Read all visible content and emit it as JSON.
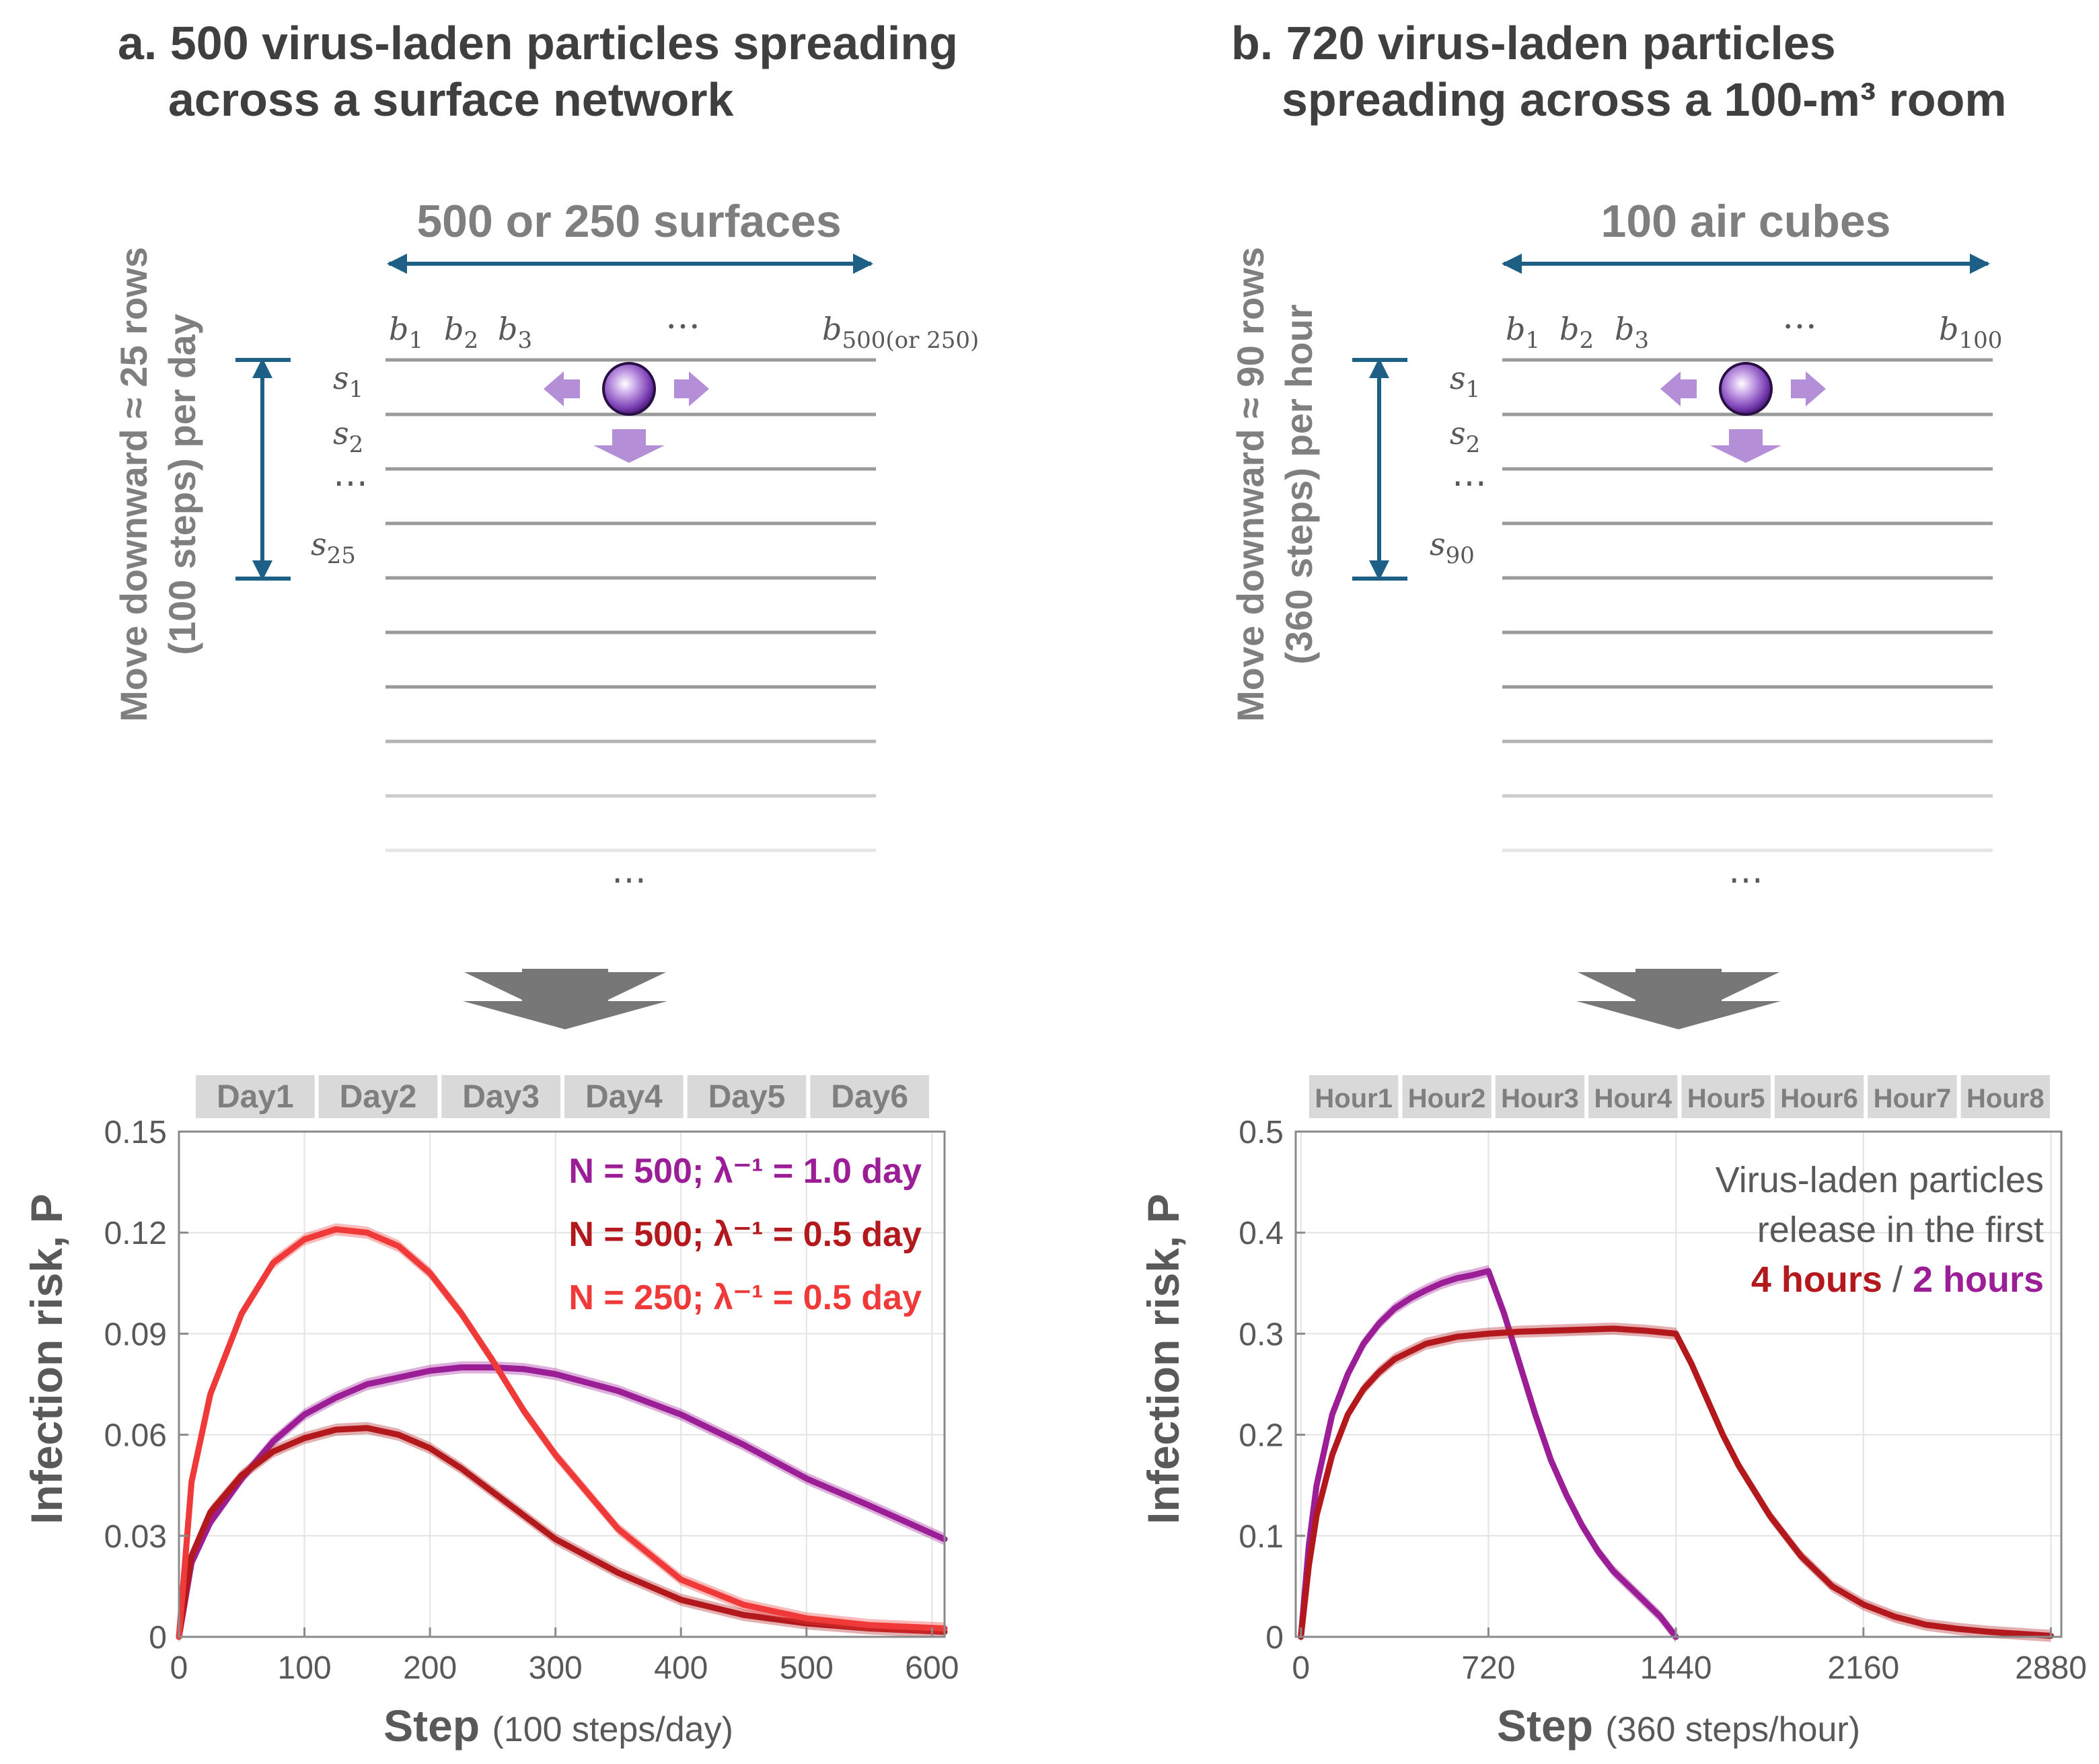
{
  "panels": [
    {
      "title_line1": "a. 500 virus-laden particles spreading",
      "title_line2": "across a surface network",
      "grid_title": "500 or 250 surfaces",
      "vertical_label_line1": "Move downward ≈ 25 rows",
      "vertical_label_line2": "(100 steps) per day",
      "column_labels": [
        "1",
        "2",
        "3",
        "…",
        "500(or 250)"
      ],
      "row_labels": [
        "1",
        "2",
        "⋯",
        "25"
      ],
      "column_symbol": "b",
      "row_symbol": "s",
      "bottom_ellipsis": "⋯"
    },
    {
      "title_line1": "b. 720 virus-laden particles",
      "title_line2": "spreading across a 100-m³ room",
      "grid_title": "100 air cubes",
      "vertical_label_line1": "Move downward ≈ 90 rows",
      "vertical_label_line2": "(360 steps) per hour",
      "column_labels": [
        "1",
        "2",
        "3",
        "…",
        "100"
      ],
      "row_labels": [
        "1",
        "2",
        "⋯",
        "90"
      ],
      "column_symbol": "b",
      "row_symbol": "s",
      "bottom_ellipsis": "⋯"
    }
  ],
  "colors": {
    "purple": "#9b1e96",
    "dark_red": "#b3191c",
    "red": "#f03a3a",
    "arrow_blue": "#1e5f85",
    "grid_gray": "#9a9a9a",
    "label_gray": "#7f7f7f",
    "lilac": "#b48ed6"
  },
  "chart_data": [
    {
      "type": "line",
      "xlabel": "Step",
      "xlabel_unit": "(100 steps/day)",
      "ylabel": "Infection risk, P",
      "xlim": [
        0,
        610
      ],
      "ylim": [
        0,
        0.15
      ],
      "xticks": [
        0,
        100,
        200,
        300,
        400,
        500,
        600
      ],
      "yticks": [
        0,
        0.03,
        0.06,
        0.09,
        0.12,
        0.15
      ],
      "ytick_labels": [
        "0",
        "0.03",
        "0.06",
        "0.09",
        "0.12",
        "0.15"
      ],
      "grid": true,
      "periods": [
        "Day1",
        "Day2",
        "Day3",
        "Day4",
        "Day5",
        "Day6"
      ],
      "x": [
        0,
        10,
        25,
        50,
        75,
        100,
        125,
        150,
        175,
        200,
        225,
        250,
        275,
        300,
        350,
        400,
        450,
        500,
        550,
        610
      ],
      "series": [
        {
          "name": "N = 500;  λ⁻¹ = 1.0 day",
          "color": "#9b1e96",
          "values": [
            0,
            0.022,
            0.034,
            0.047,
            0.058,
            0.066,
            0.071,
            0.075,
            0.077,
            0.079,
            0.08,
            0.08,
            0.0795,
            0.078,
            0.073,
            0.066,
            0.057,
            0.047,
            0.039,
            0.029
          ]
        },
        {
          "name": "N = 500;  λ⁻¹ = 0.5 day",
          "color": "#b3191c",
          "values": [
            0,
            0.024,
            0.037,
            0.048,
            0.055,
            0.059,
            0.0615,
            0.062,
            0.06,
            0.056,
            0.05,
            0.043,
            0.036,
            0.029,
            0.019,
            0.011,
            0.0065,
            0.004,
            0.0025,
            0.0015
          ]
        },
        {
          "name": "N = 250;  λ⁻¹ = 0.5 day",
          "color": "#f03a3a",
          "values": [
            0,
            0.046,
            0.072,
            0.096,
            0.111,
            0.118,
            0.121,
            0.12,
            0.116,
            0.108,
            0.096,
            0.082,
            0.067,
            0.054,
            0.032,
            0.017,
            0.0095,
            0.0055,
            0.0035,
            0.0025
          ]
        }
      ]
    },
    {
      "type": "line",
      "xlabel": "Step",
      "xlabel_unit": "(360 steps/hour)",
      "ylabel": "Infection risk, P",
      "xlim": [
        -20,
        2920
      ],
      "ylim": [
        0,
        0.5
      ],
      "xticks": [
        0,
        720,
        1440,
        2160,
        2880
      ],
      "yticks": [
        0,
        0.1,
        0.2,
        0.3,
        0.4,
        0.5
      ],
      "ytick_labels": [
        "0",
        "0.1",
        "0.2",
        "0.3",
        "0.4",
        "0.5"
      ],
      "grid": true,
      "periods": [
        "Hour1",
        "Hour2",
        "Hour3",
        "Hour4",
        "Hour5",
        "Hour6",
        "Hour7",
        "Hour8"
      ],
      "annotation_line1": "Virus-laden particles",
      "annotation_line2": "release in the first",
      "annotation_red": "4 hours",
      "annotation_sep": " / ",
      "annotation_purple": "2 hours",
      "series": [
        {
          "name": "2 hours",
          "color": "#9b1e96",
          "x": [
            0,
            30,
            60,
            120,
            180,
            240,
            300,
            360,
            420,
            480,
            540,
            600,
            660,
            720,
            780,
            840,
            900,
            960,
            1020,
            1080,
            1140,
            1200,
            1260,
            1320,
            1380,
            1440
          ],
          "values": [
            0,
            0.09,
            0.15,
            0.22,
            0.26,
            0.29,
            0.31,
            0.325,
            0.335,
            0.343,
            0.35,
            0.355,
            0.358,
            0.362,
            0.32,
            0.27,
            0.22,
            0.175,
            0.14,
            0.11,
            0.085,
            0.065,
            0.05,
            0.035,
            0.02,
            0
          ]
        },
        {
          "name": "4 hours",
          "color": "#b3191c",
          "x": [
            0,
            30,
            60,
            120,
            180,
            240,
            300,
            360,
            480,
            600,
            720,
            840,
            960,
            1080,
            1200,
            1320,
            1440,
            1500,
            1560,
            1620,
            1680,
            1800,
            1920,
            2040,
            2160,
            2280,
            2400,
            2520,
            2640,
            2760,
            2880
          ],
          "values": [
            0,
            0.07,
            0.12,
            0.18,
            0.22,
            0.245,
            0.262,
            0.275,
            0.29,
            0.297,
            0.3,
            0.302,
            0.303,
            0.304,
            0.305,
            0.303,
            0.3,
            0.27,
            0.235,
            0.2,
            0.17,
            0.12,
            0.08,
            0.05,
            0.032,
            0.02,
            0.012,
            0.008,
            0.005,
            0.003,
            0.001
          ]
        }
      ]
    }
  ]
}
